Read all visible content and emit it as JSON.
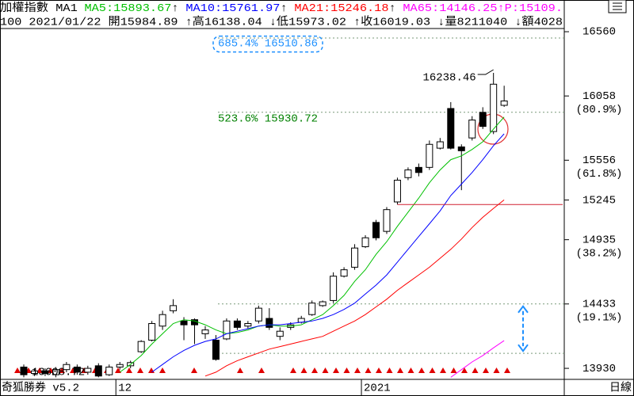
{
  "header": {
    "title": "加權指數 MA1",
    "arrows": [
      "↑",
      "↑",
      "↑",
      "↑"
    ],
    "extra": {
      "text": "P:15109.",
      "color": "#ff00ff"
    },
    "line2": "100 2021/01/22 開15984.89 ↑高16138.04 ↓低15973.02 ↑收16019.03 ↓量8211040 ↓額4028"
  },
  "footer": {
    "brand": "奇狐勝券 v5.2",
    "period": "日線"
  },
  "chart_data": {
    "type": "candlestick",
    "categories": [
      null,
      null,
      null,
      null,
      null,
      null,
      null,
      null,
      null,
      "12",
      null,
      null,
      null,
      null,
      null,
      null,
      null,
      null,
      null,
      null,
      null,
      null,
      null,
      null,
      null,
      null,
      null,
      null,
      null,
      null,
      null,
      null,
      "2021",
      null,
      null,
      null,
      null,
      null,
      null,
      null,
      null,
      null,
      null,
      null,
      null,
      null
    ],
    "open": [
      13940,
      13890,
      13910,
      13880,
      13920,
      13940,
      13900,
      13950,
      13880,
      13940,
      13950,
      14060,
      14150,
      14260,
      14380,
      14300,
      14310,
      14200,
      14150,
      14160,
      14300,
      14260,
      14300,
      14320,
      14180,
      14250,
      14290,
      14350,
      14420,
      14460,
      14650,
      14720,
      14880,
      15070,
      15000,
      15230,
      15420,
      15500,
      15500,
      15650,
      15960,
      15660,
      15730,
      15930,
      15780,
      15984.89
    ],
    "high": [
      13960,
      13930,
      13930,
      13940,
      13980,
      13960,
      13950,
      13970,
      13960,
      13980,
      13990,
      14150,
      14300,
      14380,
      14470,
      14330,
      14320,
      14260,
      14190,
      14320,
      14320,
      14300,
      14420,
      14400,
      14250,
      14290,
      14340,
      14460,
      14460,
      14680,
      14720,
      14900,
      14970,
      15090,
      15190,
      15420,
      15500,
      15530,
      15710,
      15730,
      16010,
      15680,
      15900,
      15970,
      16238.46,
      16138.04
    ],
    "low": [
      13860,
      13870,
      13870,
      13860,
      13900,
      13880,
      13880,
      13860,
      13870,
      13920,
      13930,
      14050,
      14140,
      14230,
      14360,
      14150,
      14120,
      14160,
      13990,
      14150,
      14230,
      14240,
      14280,
      14230,
      14150,
      14230,
      14280,
      14340,
      14410,
      14440,
      14640,
      14700,
      14870,
      14930,
      14980,
      15210,
      15400,
      15430,
      15480,
      15640,
      15640,
      15322,
      15710,
      15800,
      15760,
      15973.02
    ],
    "close": [
      13880,
      13910,
      13890,
      13920,
      13960,
      13900,
      13930,
      13870,
      13940,
      13960,
      13975,
      14140,
      14280,
      14350,
      14420,
      14270,
      14270,
      14230,
      14000,
      14300,
      14250,
      14280,
      14400,
      14250,
      14220,
      14270,
      14320,
      14440,
      14450,
      14650,
      14700,
      14870,
      14950,
      14950,
      15170,
      15400,
      15480,
      15460,
      15680,
      15700,
      15650,
      15630,
      15870,
      15820,
      16150,
      16019.03
    ],
    "up_color": "#ffffff",
    "down_color": "#000000",
    "series": [
      {
        "name": "MA5:15893.67",
        "color": "#00c000",
        "values": [
          null,
          null,
          null,
          null,
          null,
          null,
          null,
          null,
          null,
          13900,
          13960,
          14030,
          14120,
          14200,
          14280,
          14310,
          14300,
          14270,
          14230,
          14200,
          14210,
          14230,
          14260,
          14270,
          14260,
          14260,
          14270,
          14310,
          14350,
          14420,
          14500,
          14610,
          14700,
          14820,
          14920,
          15040,
          15150,
          15260,
          15380,
          15480,
          15560,
          15590,
          15640,
          15700,
          15800,
          15893.67
        ]
      },
      {
        "name": "MA10:15761.97",
        "color": "#0000ff",
        "values": [
          null,
          null,
          null,
          null,
          null,
          null,
          null,
          null,
          null,
          null,
          null,
          null,
          13900,
          13960,
          14020,
          14070,
          14110,
          14140,
          14160,
          14200,
          14220,
          14240,
          14260,
          14270,
          14270,
          14280,
          14290,
          14300,
          14320,
          14350,
          14390,
          14440,
          14510,
          14580,
          14660,
          14760,
          14860,
          14960,
          15060,
          15160,
          15280,
          15370,
          15460,
          15560,
          15670,
          15761.97
        ]
      },
      {
        "name": "MA21:15246.18",
        "color": "#ff0000",
        "values": [
          null,
          null,
          null,
          null,
          null,
          null,
          null,
          null,
          null,
          null,
          null,
          null,
          null,
          null,
          null,
          null,
          null,
          13870,
          13900,
          13950,
          13990,
          14020,
          14050,
          14080,
          14100,
          14120,
          14140,
          14160,
          14180,
          14220,
          14260,
          14300,
          14350,
          14410,
          14470,
          14540,
          14600,
          14660,
          14720,
          14790,
          14860,
          14940,
          15030,
          15110,
          15180,
          15246.18
        ]
      },
      {
        "name": "MA65:14146.25",
        "color": "#ff00ff",
        "values": [
          null,
          null,
          null,
          null,
          null,
          null,
          null,
          null,
          null,
          null,
          null,
          null,
          null,
          null,
          null,
          null,
          null,
          null,
          null,
          null,
          null,
          null,
          null,
          null,
          null,
          null,
          null,
          null,
          null,
          null,
          null,
          null,
          null,
          null,
          null,
          null,
          null,
          null,
          null,
          null,
          13860,
          13920,
          13980,
          14030,
          14090,
          14146.25
        ]
      }
    ],
    "ylim": [
      13850,
      16684
    ],
    "yticks": [
      16560,
      16058,
      15556,
      15245,
      14935,
      14433,
      13930
    ],
    "ytick_notes": [
      null,
      "(80.9%)",
      "(61.8%)",
      null,
      "(38.2%)",
      "(19.1%)",
      null
    ],
    "levels": [
      {
        "label": "685.4% 16510.86",
        "value": 16510.86,
        "color": "#1e90ff"
      },
      {
        "label": "523.6% 15930.72",
        "value": 15930.72,
        "color": "#008000"
      }
    ],
    "band_lines": [
      14433,
      14047
    ],
    "high_label": "16238.46",
    "low_label": "13608.72"
  }
}
